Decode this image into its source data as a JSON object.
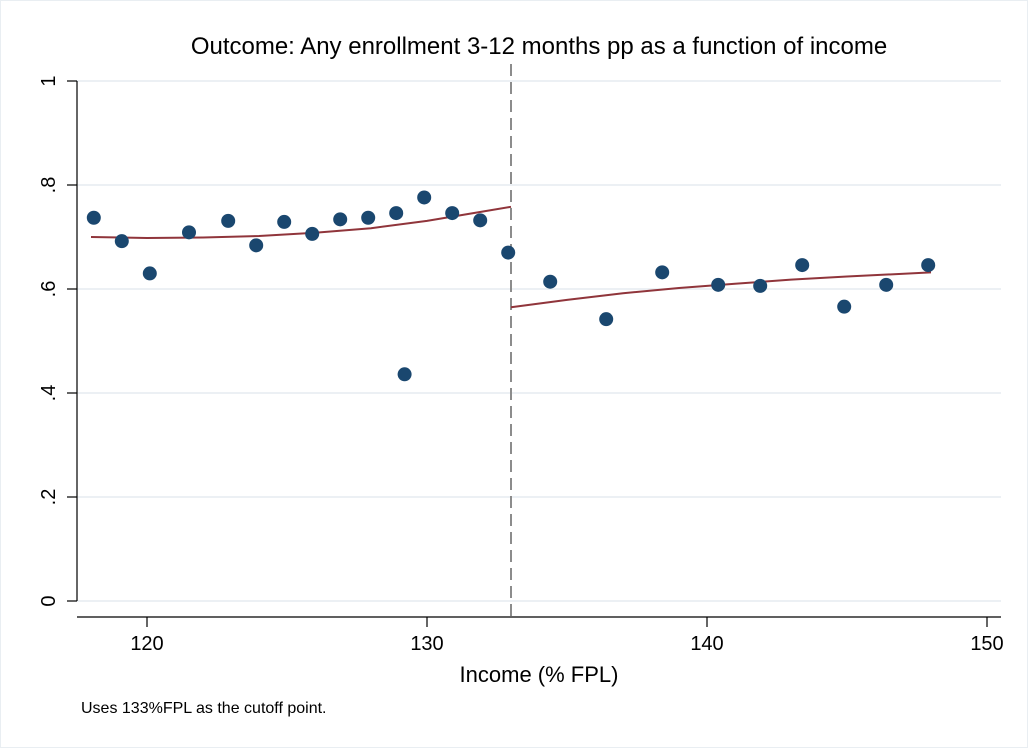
{
  "chart_data": {
    "type": "scatter",
    "title": "Outcome: Any enrollment 3-12 months pp as a function of income",
    "xlabel": "Income (% FPL)",
    "ylabel": "",
    "note": "Uses 133%FPL as the cutoff point.",
    "xlim": [
      117.5,
      150.5
    ],
    "ylim": [
      0,
      1
    ],
    "x_ticks": [
      120,
      130,
      140,
      150
    ],
    "y_ticks": [
      0,
      0.2,
      0.4,
      0.6,
      0.8,
      1
    ],
    "x_tick_labels": [
      "120",
      "130",
      "140",
      "150"
    ],
    "y_tick_labels": [
      "0",
      ".2",
      ".4",
      ".6",
      ".8",
      "1"
    ],
    "cutoff": 133,
    "grid": true,
    "colors": {
      "points": "#1a476f",
      "fit": "#90353b",
      "cutoff_line": "#8c8c8c",
      "grid": "#e5ecf0"
    },
    "series": [
      {
        "x": [
          118.1,
          119.1,
          120.1,
          121.5,
          122.9,
          123.9,
          124.9,
          125.9,
          126.9,
          127.9,
          128.9,
          129.2,
          129.9,
          130.9,
          131.9,
          132.9,
          134.4,
          136.4,
          138.4,
          140.4,
          141.9,
          143.4,
          144.9,
          146.4,
          147.9
        ],
        "y": [
          0.737,
          0.692,
          0.63,
          0.709,
          0.731,
          0.684,
          0.729,
          0.706,
          0.734,
          0.737,
          0.746,
          0.436,
          0.776,
          0.746,
          0.732,
          0.67,
          0.614,
          0.542,
          0.632,
          0.608,
          0.606,
          0.646,
          0.566,
          0.608,
          0.646
        ]
      }
    ],
    "fits": [
      {
        "x": [
          118,
          120,
          122,
          124,
          126,
          128,
          130,
          132,
          133
        ],
        "y": [
          0.7,
          0.698,
          0.699,
          0.702,
          0.708,
          0.717,
          0.731,
          0.749,
          0.758
        ]
      },
      {
        "x": [
          133,
          135,
          137,
          139,
          141,
          143,
          145,
          148
        ],
        "y": [
          0.565,
          0.579,
          0.592,
          0.602,
          0.61,
          0.618,
          0.624,
          0.632
        ]
      }
    ]
  }
}
